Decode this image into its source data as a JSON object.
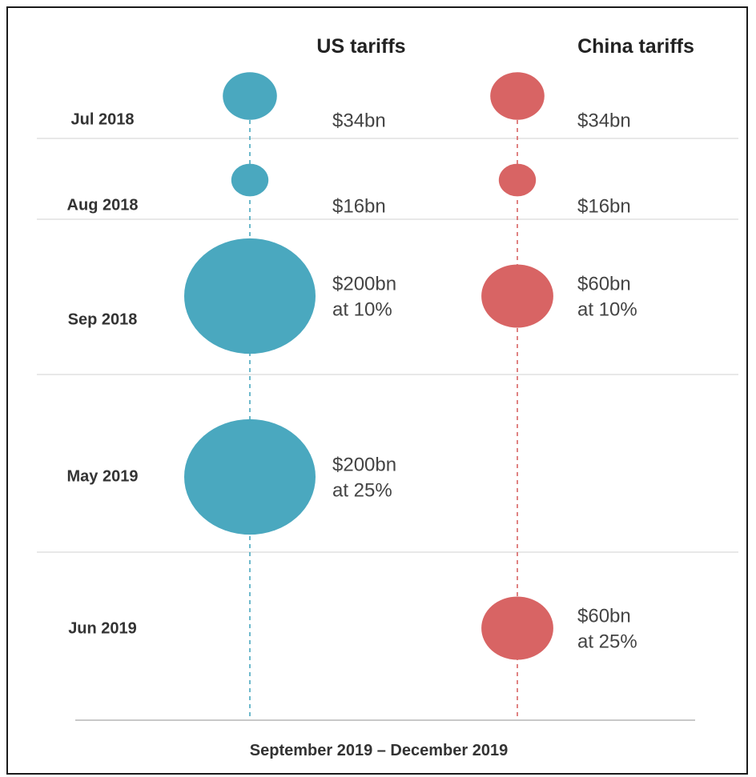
{
  "chart_data": {
    "type": "bubble-timeline",
    "title": "",
    "footer": "September 2019 – December 2019",
    "series": [
      {
        "name": "US tariffs",
        "color": "#4aa8bf"
      },
      {
        "name": "China tariffs",
        "color": "#d86464"
      }
    ],
    "rows": [
      {
        "label": "Jul 2018",
        "us": {
          "value": 34,
          "text": [
            "$34bn"
          ]
        },
        "china": {
          "value": 34,
          "text": [
            "$34bn"
          ]
        }
      },
      {
        "label": "Aug 2018",
        "us": {
          "value": 16,
          "text": [
            "$16bn"
          ]
        },
        "china": {
          "value": 16,
          "text": [
            "$16bn"
          ]
        }
      },
      {
        "label": "Sep 2018",
        "us": {
          "value": 200,
          "rate": 10,
          "text": [
            "$200bn",
            "at 10%"
          ]
        },
        "china": {
          "value": 60,
          "rate": 10,
          "text": [
            "$60bn",
            "at 10%"
          ]
        }
      },
      {
        "label": "May 2019",
        "us": {
          "value": 200,
          "rate": 25,
          "text": [
            "$200bn",
            "at 25%"
          ]
        },
        "china": null
      },
      {
        "label": "Jun 2019",
        "us": null,
        "china": {
          "value": 60,
          "rate": 25,
          "text": [
            "$60bn",
            "at 25%"
          ]
        }
      }
    ]
  }
}
